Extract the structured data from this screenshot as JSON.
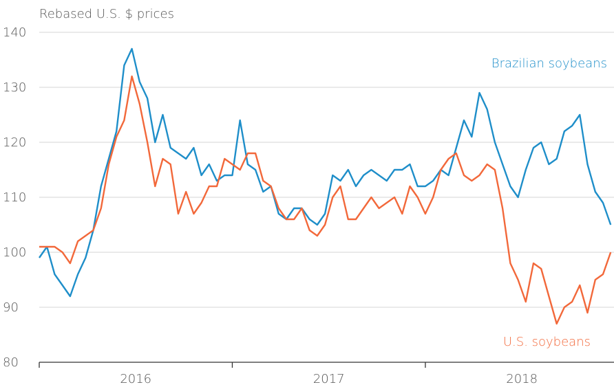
{
  "chart_data": {
    "type": "line",
    "y_axis_label": "Rebased U.S. $ prices",
    "x": [
      2016.0,
      2016.04,
      2016.08,
      2016.12,
      2016.16,
      2016.2,
      2016.24,
      2016.28,
      2016.32,
      2016.36,
      2016.4,
      2016.44,
      2016.48,
      2016.52,
      2016.56,
      2016.6,
      2016.64,
      2016.68,
      2016.72,
      2016.76,
      2016.8,
      2016.84,
      2016.88,
      2016.92,
      2016.96,
      2017.0,
      2017.04,
      2017.08,
      2017.12,
      2017.16,
      2017.2,
      2017.24,
      2017.28,
      2017.32,
      2017.36,
      2017.4,
      2017.44,
      2017.48,
      2017.52,
      2017.56,
      2017.6,
      2017.64,
      2017.68,
      2017.72,
      2017.76,
      2017.8,
      2017.84,
      2017.88,
      2017.92,
      2017.96,
      2018.0,
      2018.04,
      2018.08,
      2018.12,
      2018.16,
      2018.2,
      2018.24,
      2018.28,
      2018.32,
      2018.36,
      2018.4,
      2018.44,
      2018.48,
      2018.52,
      2018.56,
      2018.6,
      2018.64,
      2018.68,
      2018.72,
      2018.76,
      2018.8,
      2018.84,
      2018.88,
      2018.92,
      2018.96
    ],
    "series": [
      {
        "name": "Brazilian soybeans",
        "color": "#1e8ec9",
        "values": [
          99,
          101,
          96,
          94,
          92,
          96,
          99,
          104,
          112,
          117,
          122,
          134,
          137,
          131,
          128,
          120,
          125,
          119,
          118,
          117,
          119,
          114,
          116,
          113,
          114,
          114,
          124,
          116,
          115,
          111,
          112,
          107,
          106,
          108,
          108,
          106,
          105,
          107,
          114,
          113,
          115,
          112,
          114,
          115,
          114,
          113,
          115,
          115,
          116,
          112,
          112,
          113,
          115,
          114,
          119,
          124,
          121,
          129,
          126,
          120,
          116,
          112,
          110,
          115,
          119,
          120,
          116,
          117,
          122,
          123,
          125,
          116,
          111,
          109,
          105
        ]
      },
      {
        "name": "U.S. soybeans",
        "color": "#f2683a",
        "values": [
          101,
          101,
          101,
          100,
          98,
          102,
          103,
          104,
          108,
          116,
          121,
          124,
          132,
          127,
          120,
          112,
          117,
          116,
          107,
          111,
          107,
          109,
          112,
          112,
          117,
          116,
          115,
          118,
          118,
          113,
          112,
          108,
          106,
          106,
          108,
          104,
          103,
          105,
          110,
          112,
          106,
          106,
          108,
          110,
          108,
          109,
          110,
          107,
          112,
          110,
          107,
          110,
          115,
          117,
          118,
          114,
          113,
          114,
          116,
          115,
          108,
          98,
          95,
          91,
          98,
          97,
          92,
          87,
          90,
          91,
          94,
          89,
          95,
          96,
          100
        ]
      }
    ],
    "xlim": [
      2016,
      2018.97
    ],
    "xticks": [
      {
        "value": 2016,
        "label": "2016"
      },
      {
        "value": 2017,
        "label": "2017"
      },
      {
        "value": 2018,
        "label": "2018"
      }
    ],
    "ylim": [
      80,
      140
    ],
    "yticks": [
      80,
      90,
      100,
      110,
      120,
      130,
      140
    ],
    "grid": true
  }
}
